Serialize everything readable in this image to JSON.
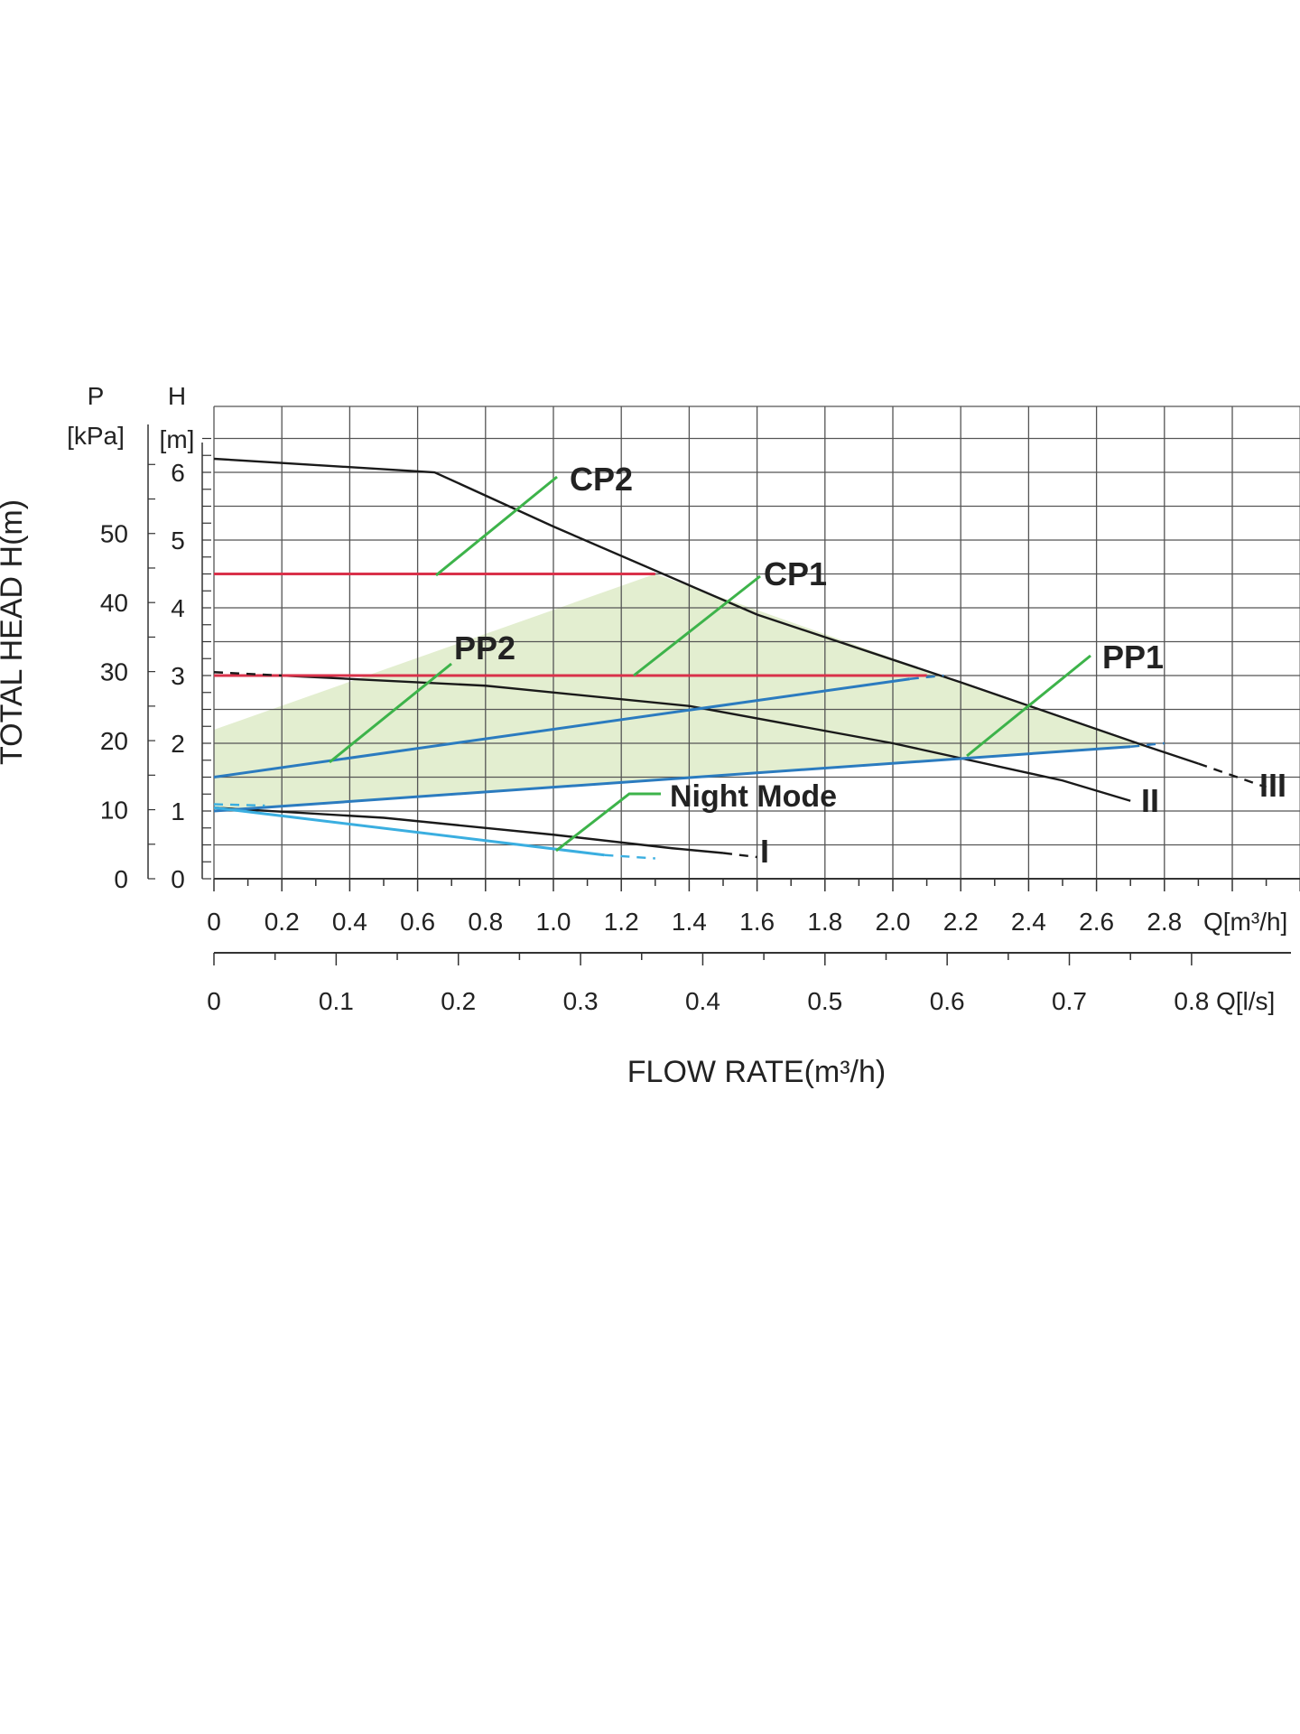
{
  "chart_data": {
    "type": "line",
    "y_axis_title": "TOTAL HEAD H(m)",
    "x_axis_title": "FLOW RATE(m³/h)",
    "p_axis": {
      "label": "P",
      "unit": "[kPa]",
      "ticks": [
        "0",
        "10",
        "20",
        "30",
        "40",
        "50"
      ]
    },
    "h_axis": {
      "label": "H",
      "unit": "[m]",
      "ticks": [
        "0",
        "1",
        "2",
        "3",
        "4",
        "5",
        "6"
      ]
    },
    "x_axis_m3h": {
      "unit": "Q[m³/h]",
      "ticks": [
        "0",
        "0.2",
        "0.4",
        "0.6",
        "0.8",
        "1.0",
        "1.2",
        "1.4",
        "1.6",
        "1.8",
        "2.0",
        "2.2",
        "2.4",
        "2.6",
        "2.8"
      ]
    },
    "x_axis_ls": {
      "unit": "Q[l/s]",
      "ticks": [
        "0",
        "0.1",
        "0.2",
        "0.3",
        "0.4",
        "0.5",
        "0.6",
        "0.7",
        "0.8"
      ]
    },
    "xlim": [
      0,
      3.2
    ],
    "ylim": [
      0,
      7
    ],
    "grid": true,
    "colors": {
      "speed": "#1a1a1a",
      "constant_pressure": "#d9314a",
      "proportional_pressure": "#2b7bbf",
      "night_mode": "#3aaee0",
      "leader": "#3db34a",
      "operating_area": "#e3eed0"
    },
    "series": [
      {
        "name": "III",
        "color": "#1a1a1a",
        "x": [
          0,
          0.65,
          1.0,
          1.6,
          2.2,
          2.75,
          2.9
        ],
        "y": [
          6.2,
          6.0,
          5.2,
          3.9,
          2.9,
          1.95,
          1.7
        ]
      },
      {
        "name": "II",
        "color": "#1a1a1a",
        "x": [
          0.2,
          0.8,
          1.4,
          2.0,
          2.5,
          2.7
        ],
        "y": [
          3.0,
          2.85,
          2.55,
          2.0,
          1.45,
          1.15
        ]
      },
      {
        "name": "I",
        "color": "#1a1a1a",
        "x": [
          0,
          0.5,
          1.0,
          1.35,
          1.5
        ],
        "y": [
          1.05,
          0.9,
          0.65,
          0.45,
          0.38
        ]
      },
      {
        "name": "CP2",
        "color": "#d9314a",
        "x": [
          0,
          1.3
        ],
        "y": [
          4.5,
          4.5
        ]
      },
      {
        "name": "CP1",
        "color": "#d9314a",
        "x": [
          0,
          2.1
        ],
        "y": [
          3.0,
          3.0
        ]
      },
      {
        "name": "PP2",
        "color": "#2b7bbf",
        "x": [
          0,
          2.05
        ],
        "y": [
          1.5,
          2.95
        ]
      },
      {
        "name": "PP1",
        "color": "#2b7bbf",
        "x": [
          0,
          2.7
        ],
        "y": [
          1.0,
          1.95
        ]
      },
      {
        "name": "Night Mode",
        "color": "#3aaee0",
        "x": [
          0,
          1.15
        ],
        "y": [
          1.05,
          0.35
        ]
      }
    ],
    "annotations": [
      "CP2",
      "CP1",
      "PP2",
      "PP1",
      "Night Mode",
      "I",
      "II",
      "III"
    ]
  }
}
